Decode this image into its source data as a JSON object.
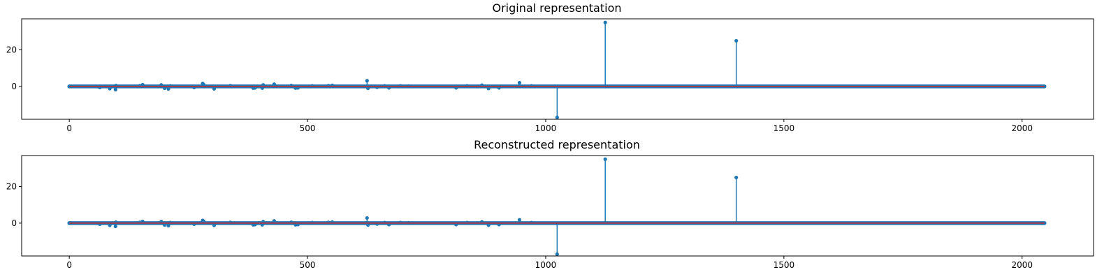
{
  "colors": {
    "stem": "#1f77b4",
    "baseline": "#d62728",
    "axes": "#000000",
    "background": "#ffffff"
  },
  "chart_data": [
    {
      "type": "stem",
      "title": "Original representation",
      "xlabel": "",
      "ylabel": "",
      "xlim": [
        -100,
        2150
      ],
      "ylim": [
        -18,
        37
      ],
      "xticks": [
        0,
        500,
        1000,
        1500,
        2000
      ],
      "yticks": [
        0,
        20
      ],
      "grid": false,
      "x_domain": [
        0,
        2047
      ],
      "baseline": 0,
      "spikes": [
        {
          "x": 64,
          "y": -0.6
        },
        {
          "x": 85,
          "y": -1.2
        },
        {
          "x": 97,
          "y": -1.8
        },
        {
          "x": 98,
          "y": 0.5
        },
        {
          "x": 148,
          "y": 0.4
        },
        {
          "x": 154,
          "y": 0.9
        },
        {
          "x": 193,
          "y": 0.8
        },
        {
          "x": 200,
          "y": -1.0
        },
        {
          "x": 208,
          "y": -1.4
        },
        {
          "x": 212,
          "y": 0.3
        },
        {
          "x": 262,
          "y": -0.6
        },
        {
          "x": 280,
          "y": 1.6
        },
        {
          "x": 282,
          "y": 1.0
        },
        {
          "x": 304,
          "y": -1.3
        },
        {
          "x": 338,
          "y": 0.4
        },
        {
          "x": 386,
          "y": -0.9
        },
        {
          "x": 390,
          "y": -0.8
        },
        {
          "x": 405,
          "y": -0.9
        },
        {
          "x": 407,
          "y": 0.8
        },
        {
          "x": 430,
          "y": 1.2
        },
        {
          "x": 432,
          "y": 0.4
        },
        {
          "x": 466,
          "y": 0.5
        },
        {
          "x": 475,
          "y": -0.9
        },
        {
          "x": 480,
          "y": -0.8
        },
        {
          "x": 510,
          "y": 0.3
        },
        {
          "x": 544,
          "y": 0.4
        },
        {
          "x": 552,
          "y": 0.6
        },
        {
          "x": 625,
          "y": 3.1
        },
        {
          "x": 627,
          "y": -1.0
        },
        {
          "x": 646,
          "y": -0.5
        },
        {
          "x": 662,
          "y": 0.3
        },
        {
          "x": 671,
          "y": -0.8
        },
        {
          "x": 695,
          "y": 0.3
        },
        {
          "x": 712,
          "y": 0.2
        },
        {
          "x": 812,
          "y": -0.8
        },
        {
          "x": 835,
          "y": 0.3
        },
        {
          "x": 866,
          "y": 0.7
        },
        {
          "x": 880,
          "y": -1.1
        },
        {
          "x": 902,
          "y": -0.8
        },
        {
          "x": 945,
          "y": 2.0
        },
        {
          "x": 970,
          "y": 0.3
        },
        {
          "x": 1024,
          "y": -17.0
        },
        {
          "x": 1125,
          "y": 35.0
        },
        {
          "x": 1400,
          "y": 25.0
        }
      ]
    },
    {
      "type": "stem",
      "title": "Reconstructed representation",
      "xlabel": "",
      "ylabel": "",
      "xlim": [
        -100,
        2150
      ],
      "ylim": [
        -18,
        37
      ],
      "xticks": [
        0,
        500,
        1000,
        1500,
        2000
      ],
      "yticks": [
        0,
        20
      ],
      "grid": false,
      "x_domain": [
        0,
        2047
      ],
      "baseline": 0,
      "spikes": [
        {
          "x": 64,
          "y": -0.6
        },
        {
          "x": 85,
          "y": -1.2
        },
        {
          "x": 97,
          "y": -1.8
        },
        {
          "x": 98,
          "y": 0.5
        },
        {
          "x": 148,
          "y": 0.4
        },
        {
          "x": 154,
          "y": 0.9
        },
        {
          "x": 193,
          "y": 0.8
        },
        {
          "x": 200,
          "y": -1.0
        },
        {
          "x": 208,
          "y": -1.4
        },
        {
          "x": 212,
          "y": 0.3
        },
        {
          "x": 262,
          "y": -0.6
        },
        {
          "x": 280,
          "y": 1.5
        },
        {
          "x": 282,
          "y": 1.0
        },
        {
          "x": 304,
          "y": -1.2
        },
        {
          "x": 338,
          "y": 0.4
        },
        {
          "x": 386,
          "y": -0.9
        },
        {
          "x": 390,
          "y": -0.8
        },
        {
          "x": 405,
          "y": -0.9
        },
        {
          "x": 407,
          "y": 0.8
        },
        {
          "x": 430,
          "y": 1.2
        },
        {
          "x": 432,
          "y": 0.4
        },
        {
          "x": 466,
          "y": 0.5
        },
        {
          "x": 475,
          "y": -0.9
        },
        {
          "x": 480,
          "y": -0.8
        },
        {
          "x": 510,
          "y": 0.3
        },
        {
          "x": 544,
          "y": 0.4
        },
        {
          "x": 552,
          "y": 0.6
        },
        {
          "x": 625,
          "y": 2.8
        },
        {
          "x": 627,
          "y": -1.0
        },
        {
          "x": 646,
          "y": -0.5
        },
        {
          "x": 662,
          "y": 0.3
        },
        {
          "x": 671,
          "y": -0.8
        },
        {
          "x": 695,
          "y": 0.3
        },
        {
          "x": 712,
          "y": 0.2
        },
        {
          "x": 812,
          "y": -0.8
        },
        {
          "x": 835,
          "y": 0.3
        },
        {
          "x": 866,
          "y": 0.7
        },
        {
          "x": 880,
          "y": -1.1
        },
        {
          "x": 902,
          "y": -0.8
        },
        {
          "x": 945,
          "y": 1.8
        },
        {
          "x": 970,
          "y": 0.3
        },
        {
          "x": 1024,
          "y": -17.0
        },
        {
          "x": 1125,
          "y": 35.0
        },
        {
          "x": 1400,
          "y": 25.0
        }
      ]
    }
  ]
}
